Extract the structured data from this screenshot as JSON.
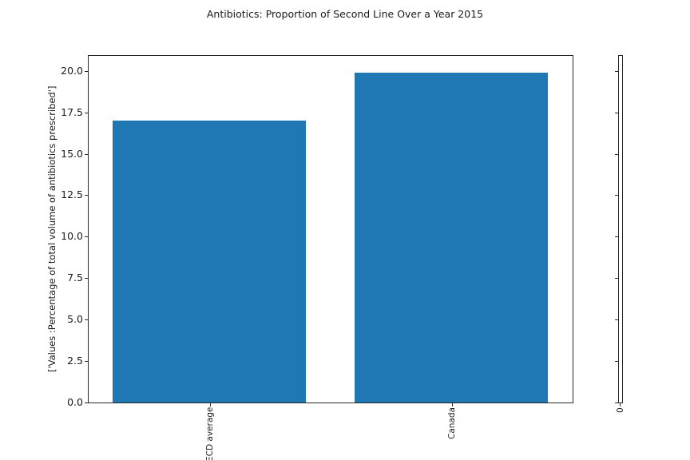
{
  "chart_data": {
    "type": "bar",
    "title": "Antibiotics: Proportion of Second Line Over a Year 2015",
    "categories": [
      "ECD average",
      "Canada"
    ],
    "values": [
      17.0,
      19.9
    ],
    "xlabel": "",
    "ylabel": "['Values :Percentage of total volume of antibiotics prescribed']",
    "ylim": [
      0,
      20.9
    ],
    "xlim": [
      -0.5,
      1.5
    ],
    "yticks": [
      0.0,
      2.5,
      5.0,
      7.5,
      10.0,
      12.5,
      15.0,
      17.5,
      20.0
    ],
    "ytick_labels": [
      "0.0",
      "2.5",
      "5.0",
      "7.5",
      "10.0",
      "12.5",
      "15.0",
      "17.5",
      "20.0"
    ],
    "xtick_rotation_deg": 90,
    "bar_width_fraction": 0.8,
    "bar_color": "#1f77b4",
    "grid": false,
    "legend": null
  },
  "secondary_axes": {
    "xtick_label": "0",
    "ytick_values": [
      0.0,
      2.5,
      5.0,
      7.5,
      10.0,
      12.5,
      15.0,
      17.5,
      20.0
    ],
    "has_ytick_labels": false
  },
  "colors": {
    "bar": "#1f77b4",
    "spine": "#262626",
    "text": "#1a1a1a",
    "background": "#ffffff"
  }
}
